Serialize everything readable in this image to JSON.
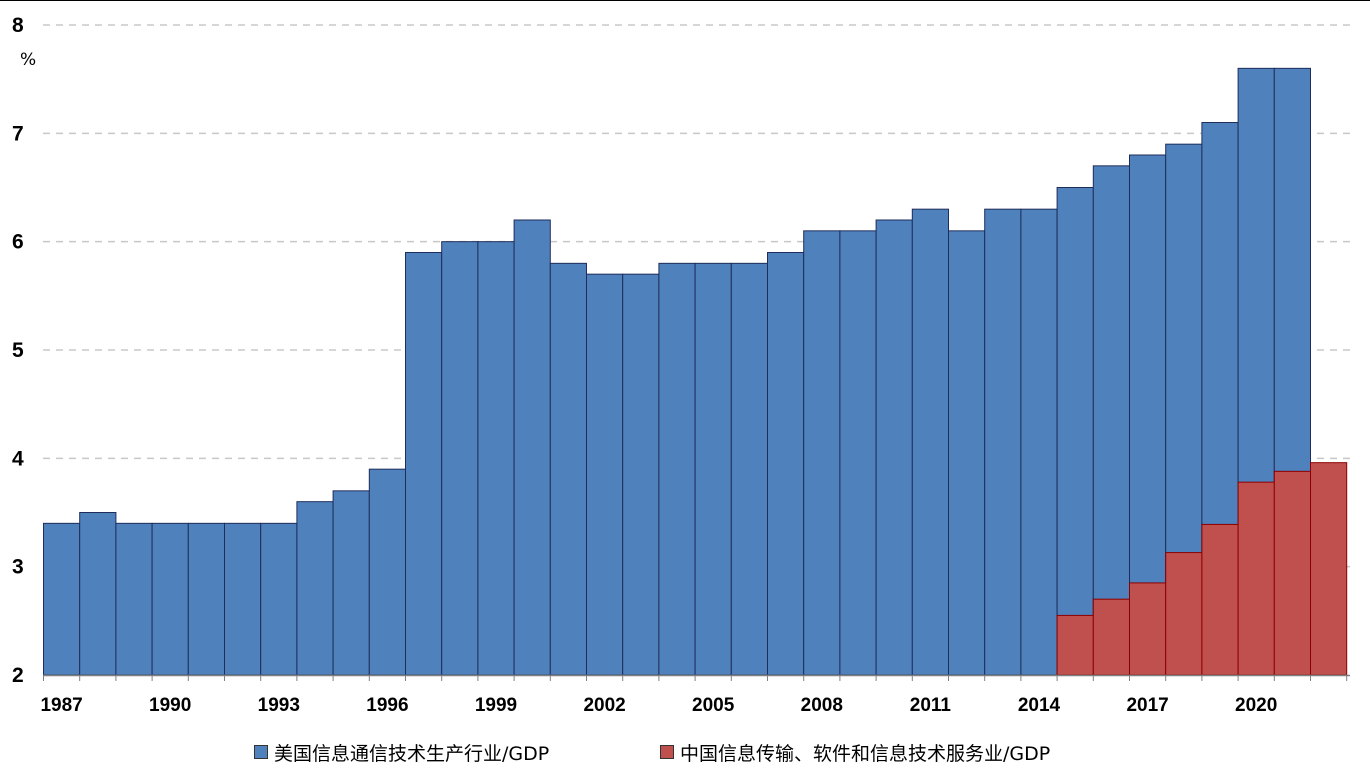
{
  "chart_data": {
    "type": "bar",
    "unit_label": "%",
    "ylim": [
      2,
      8
    ],
    "y_ticks": [
      "2",
      "3",
      "4",
      "5",
      "6",
      "7",
      "8"
    ],
    "grid": "horizontal-dashed",
    "legend_position": "bottom",
    "x_tick_labels": [
      "1987",
      "1990",
      "1993",
      "1996",
      "1999",
      "2002",
      "2005",
      "2008",
      "2011",
      "2014",
      "2017",
      "2020"
    ],
    "x_tick_slot_index": [
      0,
      3,
      6,
      9,
      12,
      15,
      18,
      21,
      24,
      27,
      30,
      33
    ],
    "slot_count": 36,
    "series": [
      {
        "name": "美国信息通信技术生产行业/GDP",
        "color": "#4F81BD",
        "stroke": "#1F2D5A",
        "start_slot": 0,
        "values": [
          3.4,
          3.5,
          3.4,
          3.4,
          3.4,
          3.4,
          3.4,
          3.6,
          3.7,
          3.9,
          5.9,
          6.0,
          6.0,
          6.2,
          5.8,
          5.7,
          5.7,
          5.8,
          5.8,
          5.8,
          5.9,
          6.1,
          6.1,
          6.2,
          6.3,
          6.1,
          6.3,
          6.3,
          6.5,
          6.7,
          6.8,
          6.9,
          7.1,
          7.6,
          7.6
        ]
      },
      {
        "name": "中国信息传输、软件和信息技术服务业/GDP",
        "color": "#C0504D",
        "stroke": "#8B0000",
        "start_slot": 28,
        "values": [
          2.55,
          2.7,
          2.85,
          3.13,
          3.39,
          3.78,
          3.88,
          3.96
        ]
      }
    ]
  }
}
